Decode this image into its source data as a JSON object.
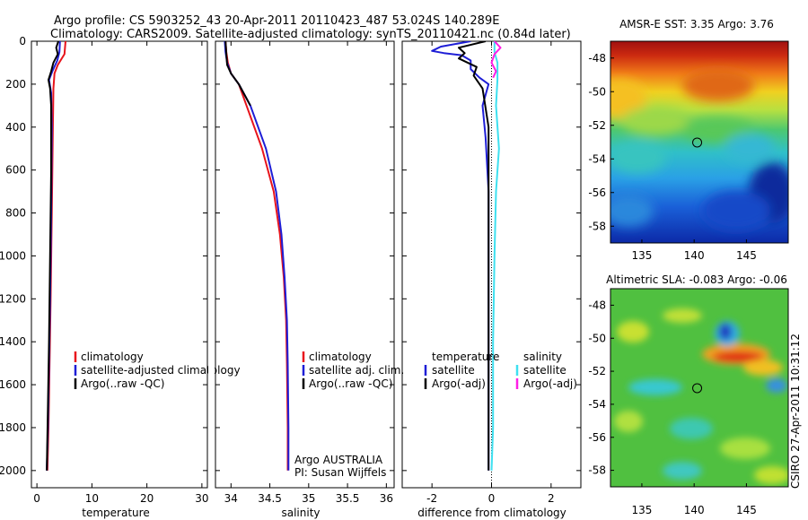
{
  "header": {
    "title_line1": "Argo profile: CS 5903252_43 20-Apr-2011 20110423_487 53.024S 140.289E",
    "title_line2": "Climatology: CARS2009. Satellite-adjusted climatology: synTS_20110421.nc (0.84d later)"
  },
  "side_label": "CSIRO 27-Apr-2011 10:31:12",
  "colors": {
    "red": "#e8141c",
    "blue": "#1e1ed6",
    "black": "#000000",
    "cyan": "#3ee0f0",
    "magenta": "#ff1ee6"
  },
  "chart_data": [
    {
      "id": "temperature",
      "type": "line",
      "xlabel": "temperature",
      "xlim": [
        -1,
        31
      ],
      "ylim": [
        2080,
        0
      ],
      "x_ticks": [
        "0",
        "10",
        "20",
        "30"
      ],
      "x_tick_values": [
        0,
        10,
        20,
        30
      ],
      "y_ticks": [
        "0",
        "200",
        "400",
        "600",
        "800",
        "1000",
        "1200",
        "1400",
        "1600",
        "1800",
        "2000"
      ],
      "y_tick_values": [
        0,
        200,
        400,
        600,
        800,
        1000,
        1200,
        1400,
        1600,
        1800,
        2000
      ],
      "legend": [
        "climatology",
        "satellite-adjusted climatology",
        "Argo(..raw -QC)"
      ],
      "legend_colors": [
        "red",
        "blue",
        "black"
      ],
      "series": [
        {
          "name": "climatology",
          "color": "red",
          "points": [
            [
              5.2,
              0
            ],
            [
              5.0,
              60
            ],
            [
              3.8,
              110
            ],
            [
              3.2,
              150
            ],
            [
              3.0,
              220
            ],
            [
              2.9,
              400
            ],
            [
              2.7,
              800
            ],
            [
              2.5,
              1200
            ],
            [
              2.3,
              1500
            ],
            [
              2.1,
              1800
            ],
            [
              1.9,
              2000
            ]
          ]
        },
        {
          "name": "satellite-adjusted climatology",
          "color": "blue",
          "points": [
            [
              4.2,
              0
            ],
            [
              4.1,
              50
            ],
            [
              3.7,
              90
            ],
            [
              2.8,
              140
            ],
            [
              2.2,
              180
            ],
            [
              2.6,
              240
            ],
            [
              2.7,
              400
            ],
            [
              2.6,
              800
            ],
            [
              2.4,
              1200
            ],
            [
              2.2,
              1500
            ],
            [
              2.0,
              1800
            ],
            [
              1.8,
              2000
            ]
          ]
        },
        {
          "name": "Argo(..raw -QC)",
          "color": "black",
          "points": [
            [
              3.9,
              0
            ],
            [
              3.5,
              30
            ],
            [
              3.8,
              60
            ],
            [
              3.0,
              100
            ],
            [
              2.6,
              140
            ],
            [
              2.1,
              180
            ],
            [
              2.4,
              220
            ],
            [
              2.6,
              300
            ],
            [
              2.6,
              600
            ],
            [
              2.4,
              1000
            ],
            [
              2.2,
              1400
            ],
            [
              2.0,
              1700
            ],
            [
              1.8,
              2000
            ]
          ]
        }
      ]
    },
    {
      "id": "salinity",
      "type": "line",
      "xlabel": "salinity",
      "xlim": [
        33.8,
        36.1
      ],
      "ylim": [
        2080,
        0
      ],
      "x_ticks": [
        "34",
        "34.5",
        "35",
        "35.5",
        "36"
      ],
      "x_tick_values": [
        34,
        34.5,
        35,
        35.5,
        36
      ],
      "legend": [
        "climatology",
        "satellite adj. clim.",
        "Argo(..raw -QC)"
      ],
      "legend_colors": [
        "red",
        "blue",
        "black"
      ],
      "annotations": [
        "Argo AUSTRALIA",
        "PI: Susan Wijffels"
      ],
      "series": [
        {
          "name": "climatology",
          "color": "red",
          "points": [
            [
              33.93,
              0
            ],
            [
              33.94,
              50
            ],
            [
              33.96,
              100
            ],
            [
              34.0,
              150
            ],
            [
              34.1,
              200
            ],
            [
              34.2,
              300
            ],
            [
              34.4,
              500
            ],
            [
              34.55,
              700
            ],
            [
              34.63,
              900
            ],
            [
              34.68,
              1100
            ],
            [
              34.71,
              1300
            ],
            [
              34.72,
              1500
            ],
            [
              34.73,
              1800
            ],
            [
              34.73,
              2000
            ]
          ]
        },
        {
          "name": "satellite adj. clim.",
          "color": "blue",
          "points": [
            [
              33.92,
              0
            ],
            [
              33.93,
              50
            ],
            [
              33.95,
              100
            ],
            [
              34.0,
              150
            ],
            [
              34.1,
              200
            ],
            [
              34.25,
              300
            ],
            [
              34.45,
              500
            ],
            [
              34.58,
              700
            ],
            [
              34.65,
              900
            ],
            [
              34.69,
              1100
            ],
            [
              34.72,
              1300
            ],
            [
              34.73,
              1500
            ],
            [
              34.74,
              1800
            ],
            [
              34.74,
              2000
            ]
          ]
        },
        {
          "name": "Argo(..raw -QC)",
          "color": "black",
          "points": [
            [
              33.93,
              0
            ],
            [
              33.94,
              60
            ],
            [
              33.95,
              110
            ],
            [
              34.0,
              150
            ],
            [
              34.1,
              200
            ],
            [
              34.25,
              300
            ]
          ]
        }
      ]
    },
    {
      "id": "difference",
      "type": "line",
      "xlabel": "difference from climatology",
      "xlim": [
        -3,
        3
      ],
      "ylim": [
        2080,
        0
      ],
      "x_ticks": [
        "-2",
        "0",
        "2"
      ],
      "x_tick_values": [
        -2,
        0,
        2
      ],
      "legend_titles": [
        "temperature",
        "salinity"
      ],
      "legend_left": [
        "satellite",
        "Argo(-adj)"
      ],
      "legend_left_colors": [
        "blue",
        "black"
      ],
      "legend_right": [
        "satellite",
        "Argo(-adj)"
      ],
      "legend_right_colors": [
        "cyan",
        "magenta"
      ],
      "series": [
        {
          "name": "temperature satellite",
          "color": "blue",
          "points": [
            [
              -0.7,
              0
            ],
            [
              -1.7,
              25
            ],
            [
              -2.0,
              45
            ],
            [
              -1.6,
              55
            ],
            [
              -1.0,
              65
            ],
            [
              -0.7,
              90
            ],
            [
              -0.7,
              130
            ],
            [
              -0.4,
              170
            ],
            [
              -0.1,
              200
            ],
            [
              -0.3,
              300
            ],
            [
              -0.2,
              450
            ],
            [
              -0.1,
              700
            ],
            [
              -0.1,
              1000
            ],
            [
              -0.1,
              1400
            ],
            [
              -0.1,
              1800
            ],
            [
              -0.1,
              2000
            ]
          ]
        },
        {
          "name": "temperature Argo(-adj)",
          "color": "black",
          "points": [
            [
              -0.2,
              0
            ],
            [
              -1.1,
              30
            ],
            [
              -0.9,
              55
            ],
            [
              -1.1,
              80
            ],
            [
              -0.5,
              120
            ],
            [
              -0.6,
              160
            ],
            [
              -0.3,
              220
            ],
            [
              -0.1,
              400
            ],
            [
              -0.1,
              800
            ],
            [
              -0.1,
              1200
            ],
            [
              -0.1,
              1600
            ],
            [
              -0.1,
              2000
            ]
          ]
        },
        {
          "name": "salinity satellite",
          "color": "cyan",
          "points": [
            [
              0.1,
              0
            ],
            [
              0.1,
              50
            ],
            [
              0.2,
              100
            ],
            [
              0.2,
              180
            ],
            [
              0.15,
              300
            ],
            [
              0.25,
              500
            ],
            [
              0.15,
              700
            ],
            [
              0.1,
              1000
            ],
            [
              0.05,
              1400
            ],
            [
              0.05,
              1800
            ],
            [
              0.0,
              2000
            ]
          ]
        },
        {
          "name": "salinity Argo(-adj)",
          "color": "magenta",
          "points": [
            [
              0.1,
              0
            ],
            [
              0.3,
              30
            ],
            [
              0.1,
              60
            ],
            [
              0.0,
              100
            ],
            [
              0.15,
              140
            ],
            [
              0.05,
              170
            ]
          ]
        }
      ]
    },
    {
      "id": "sst_map",
      "type": "heatmap",
      "title": "AMSR-E SST: 3.35 Argo: 3.76",
      "xlim": [
        132,
        149
      ],
      "ylim": [
        -59,
        -47
      ],
      "x_ticks": [
        "135",
        "140",
        "145"
      ],
      "x_tick_values": [
        135,
        140,
        145
      ],
      "y_ticks": [
        "-48",
        "-50",
        "-52",
        "-54",
        "-56",
        "-58"
      ],
      "y_tick_values": [
        -48,
        -50,
        -52,
        -54,
        -56,
        -58
      ],
      "marker": {
        "lon": 140.289,
        "lat": -53.024
      }
    },
    {
      "id": "sla_map",
      "type": "heatmap",
      "title": "Altimetric SLA: -0.083 Argo: -0.06",
      "xlim": [
        132,
        149
      ],
      "ylim": [
        -59,
        -47
      ],
      "x_ticks": [
        "135",
        "140",
        "145"
      ],
      "x_tick_values": [
        135,
        140,
        145
      ],
      "y_ticks": [
        "-48",
        "-50",
        "-52",
        "-54",
        "-56",
        "-58"
      ],
      "y_tick_values": [
        -48,
        -50,
        -52,
        -54,
        -56,
        -58
      ],
      "marker": {
        "lon": 140.289,
        "lat": -53.024
      }
    }
  ]
}
